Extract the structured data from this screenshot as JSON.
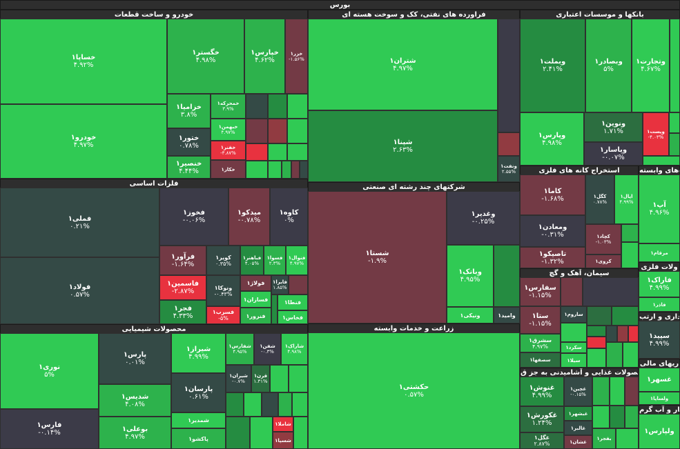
{
  "title": "بورس",
  "sectors": {
    "auto": "خودرو و ساخت قطعات",
    "petro": "فراورده های نفتی، کک و سوخت هسته ای",
    "banks": "بانکها و موسسات اعتباری",
    "metals": "فلزات اساسی",
    "multi": "شرکتهای چند رشته ای صنعتی",
    "mining": "استخراج کانه های فلزی",
    "mining_dep": "ه‌های وابسته",
    "cement": "سیمان، آهک و گچ",
    "metal_prod": "ولات فلزی",
    "chem": "محصولات شیمیایی",
    "agri": "زراعت و خدمات وابسته",
    "trade": "داری و ارتب",
    "food": "محصولات غذایی و آشامیدنی به جز ق",
    "telecom": "ریهای مالی",
    "utility": "بخار و آب گرم"
  },
  "cells": [
    {
      "n": "خساپا۱",
      "v": "۴.۹۲%"
    },
    {
      "n": "خگستر۱",
      "v": "۴.۹۸%"
    },
    {
      "n": "خپارس۱",
      "v": "۴.۶۲%"
    },
    {
      "n": "خزر۱",
      "v": "-۱.۵۶%"
    },
    {
      "n": "خودرو۱",
      "v": "۴.۹۷%"
    },
    {
      "n": "خزامیا۱",
      "v": "۳.۸%"
    },
    {
      "n": "خمحرکه۱",
      "v": "۳.۹%"
    },
    {
      "n": "ختور۱",
      "v": "۰.۷۸%"
    },
    {
      "n": "خبهمن۱",
      "v": "۴.۹۷%"
    },
    {
      "n": "خفنر۱",
      "v": "-۳.۸۷%"
    },
    {
      "n": "خنصیر۱",
      "v": "۴.۴۴%"
    },
    {
      "n": "خکار۱",
      "v": ""
    },
    {
      "n": "شتران۱",
      "v": "۴.۹۷%"
    },
    {
      "n": "شپنا۱",
      "v": "۲.۶۳%"
    },
    {
      "n": "ونفت۱",
      "v": "۲.۵۵%"
    },
    {
      "n": "وبملت۱",
      "v": "۲.۴۱%"
    },
    {
      "n": "وبصادر۱",
      "v": "۵%"
    },
    {
      "n": "وتجارت۱",
      "v": "۴.۶۷%"
    },
    {
      "n": "ونوین۱",
      "v": "۱.۷۱%"
    },
    {
      "n": "وپاسار۱",
      "v": "-۰.۰۷%"
    },
    {
      "n": "وپارس۱",
      "v": "۴.۹۸%"
    },
    {
      "n": "وپست۱",
      "v": "-۴.۰۳%"
    },
    {
      "n": "فملی۱",
      "v": "۰.۲۱%"
    },
    {
      "n": "فخوز۱",
      "v": "-۰.۰۶%"
    },
    {
      "n": "میدکو۱",
      "v": "-۰.۷۸%"
    },
    {
      "n": "کاوه۱",
      "v": "۰%"
    },
    {
      "n": "فولاد۱",
      "v": "۰.۵۷%"
    },
    {
      "n": "فرآور۱",
      "v": "-۱.۶۴%"
    },
    {
      "n": "کویر۱",
      "v": "۰.۳۵%"
    },
    {
      "n": "فباهنر۱",
      "v": "۴.۰۵%"
    },
    {
      "n": "فسوا۱",
      "v": "۲.۳%"
    },
    {
      "n": "فنوال۱",
      "v": "۴.۹۷%"
    },
    {
      "n": "فاسمین۱",
      "v": "-۲.۸۷%"
    },
    {
      "n": "ونوکا۱",
      "v": "-۰.۴۳%"
    },
    {
      "n": "فولاژ۱",
      "v": ""
    },
    {
      "n": "فایرا۱",
      "v": "۱.۸۵%"
    },
    {
      "n": "فجر۱",
      "v": "۴.۳۳%"
    },
    {
      "n": "فسرب۱",
      "v": "-۵%"
    },
    {
      "n": "فسازان۱",
      "v": ""
    },
    {
      "n": "فنرور۱",
      "v": ""
    },
    {
      "n": "فنطا۱",
      "v": ""
    },
    {
      "n": "فخاس۱",
      "v": ""
    },
    {
      "n": "شستا۱",
      "v": "-۱.۹%"
    },
    {
      "n": "وغدیر۱",
      "v": "-۰.۲۵%"
    },
    {
      "n": "وبانک۱",
      "v": "۴.۹۵%"
    },
    {
      "n": "ونیکی۱",
      "v": ""
    },
    {
      "n": "وامید۱",
      "v": ""
    },
    {
      "n": "کاما۱",
      "v": "-۱.۶۸%"
    },
    {
      "n": "کگل۱",
      "v": "۰.۷۸%"
    },
    {
      "n": "اپال۱",
      "v": "۴.۹۹%"
    },
    {
      "n": "ومعادن۱",
      "v": "-۰.۳۱%"
    },
    {
      "n": "کچاد۱",
      "v": "-۱.۰۳%"
    },
    {
      "n": "تاصیکو۱",
      "v": "-۱.۳۲%"
    },
    {
      "n": "کروی۱",
      "v": ""
    },
    {
      "n": "آپ۱",
      "v": "۴.۹۶%"
    },
    {
      "n": "مرقام۱",
      "v": ""
    },
    {
      "n": "سفارس۱",
      "v": "-۱.۱۵%"
    },
    {
      "n": "ستا۱",
      "v": "-۱.۱۵%"
    },
    {
      "n": "ساروم۱",
      "v": ""
    },
    {
      "n": "سشرق۱",
      "v": "۴.۹۷%"
    },
    {
      "n": "سکرد۱",
      "v": ""
    },
    {
      "n": "سصفها۱",
      "v": ""
    },
    {
      "n": "سیلا۱",
      "v": ""
    },
    {
      "n": "فاراک۱",
      "v": "۴.۹۹%"
    },
    {
      "n": "فاذر۱",
      "v": ""
    },
    {
      "n": "نوری۱",
      "v": "۵%"
    },
    {
      "n": "پارس۱",
      "v": "۰.۰۱%"
    },
    {
      "n": "شیراز۱",
      "v": "۴.۹۹%"
    },
    {
      "n": "شفارس۱",
      "v": "۴.۹۵%"
    },
    {
      "n": "شفن۱",
      "v": "-۰.۳%"
    },
    {
      "n": "شاراک۱",
      "v": "۴.۹۸%"
    },
    {
      "n": "شدیس۱",
      "v": "۴.۰۸%"
    },
    {
      "n": "پارسان۱",
      "v": "۰.۶۱%"
    },
    {
      "n": "شیران۱",
      "v": "-۰.۷%"
    },
    {
      "n": "قرن۱",
      "v": "۱.۳۱%"
    },
    {
      "n": "فارس۱",
      "v": "-۰.۱۴%"
    },
    {
      "n": "بوعلی۱",
      "v": "۴.۹۷%"
    },
    {
      "n": "شمدیر۱",
      "v": ""
    },
    {
      "n": "شاملا۱",
      "v": ""
    },
    {
      "n": "پاکشو۱",
      "v": ""
    },
    {
      "n": "شسپا۱",
      "v": ""
    },
    {
      "n": "سپید۱",
      "v": "۴.۹۹%"
    },
    {
      "n": "حکشتی۱",
      "v": "۰.۵۷%"
    },
    {
      "n": "غنوش۱",
      "v": "۴.۹۹%"
    },
    {
      "n": "غچین۱",
      "v": "-۰.۱۵%"
    },
    {
      "n": "غکورش۱",
      "v": "۱.۲۴%"
    },
    {
      "n": "غبشهر۱",
      "v": ""
    },
    {
      "n": "غالبر۱",
      "v": ""
    },
    {
      "n": "غگل۱",
      "v": "۲.۸۷%"
    },
    {
      "n": "غشان۱",
      "v": ""
    },
    {
      "n": "غسهر۱",
      "v": ""
    },
    {
      "n": "ولساپا۱",
      "v": "۵%"
    },
    {
      "n": "ولپارس۱",
      "v": ""
    },
    {
      "n": "بفجر۱",
      "v": "۵%"
    }
  ]
}
